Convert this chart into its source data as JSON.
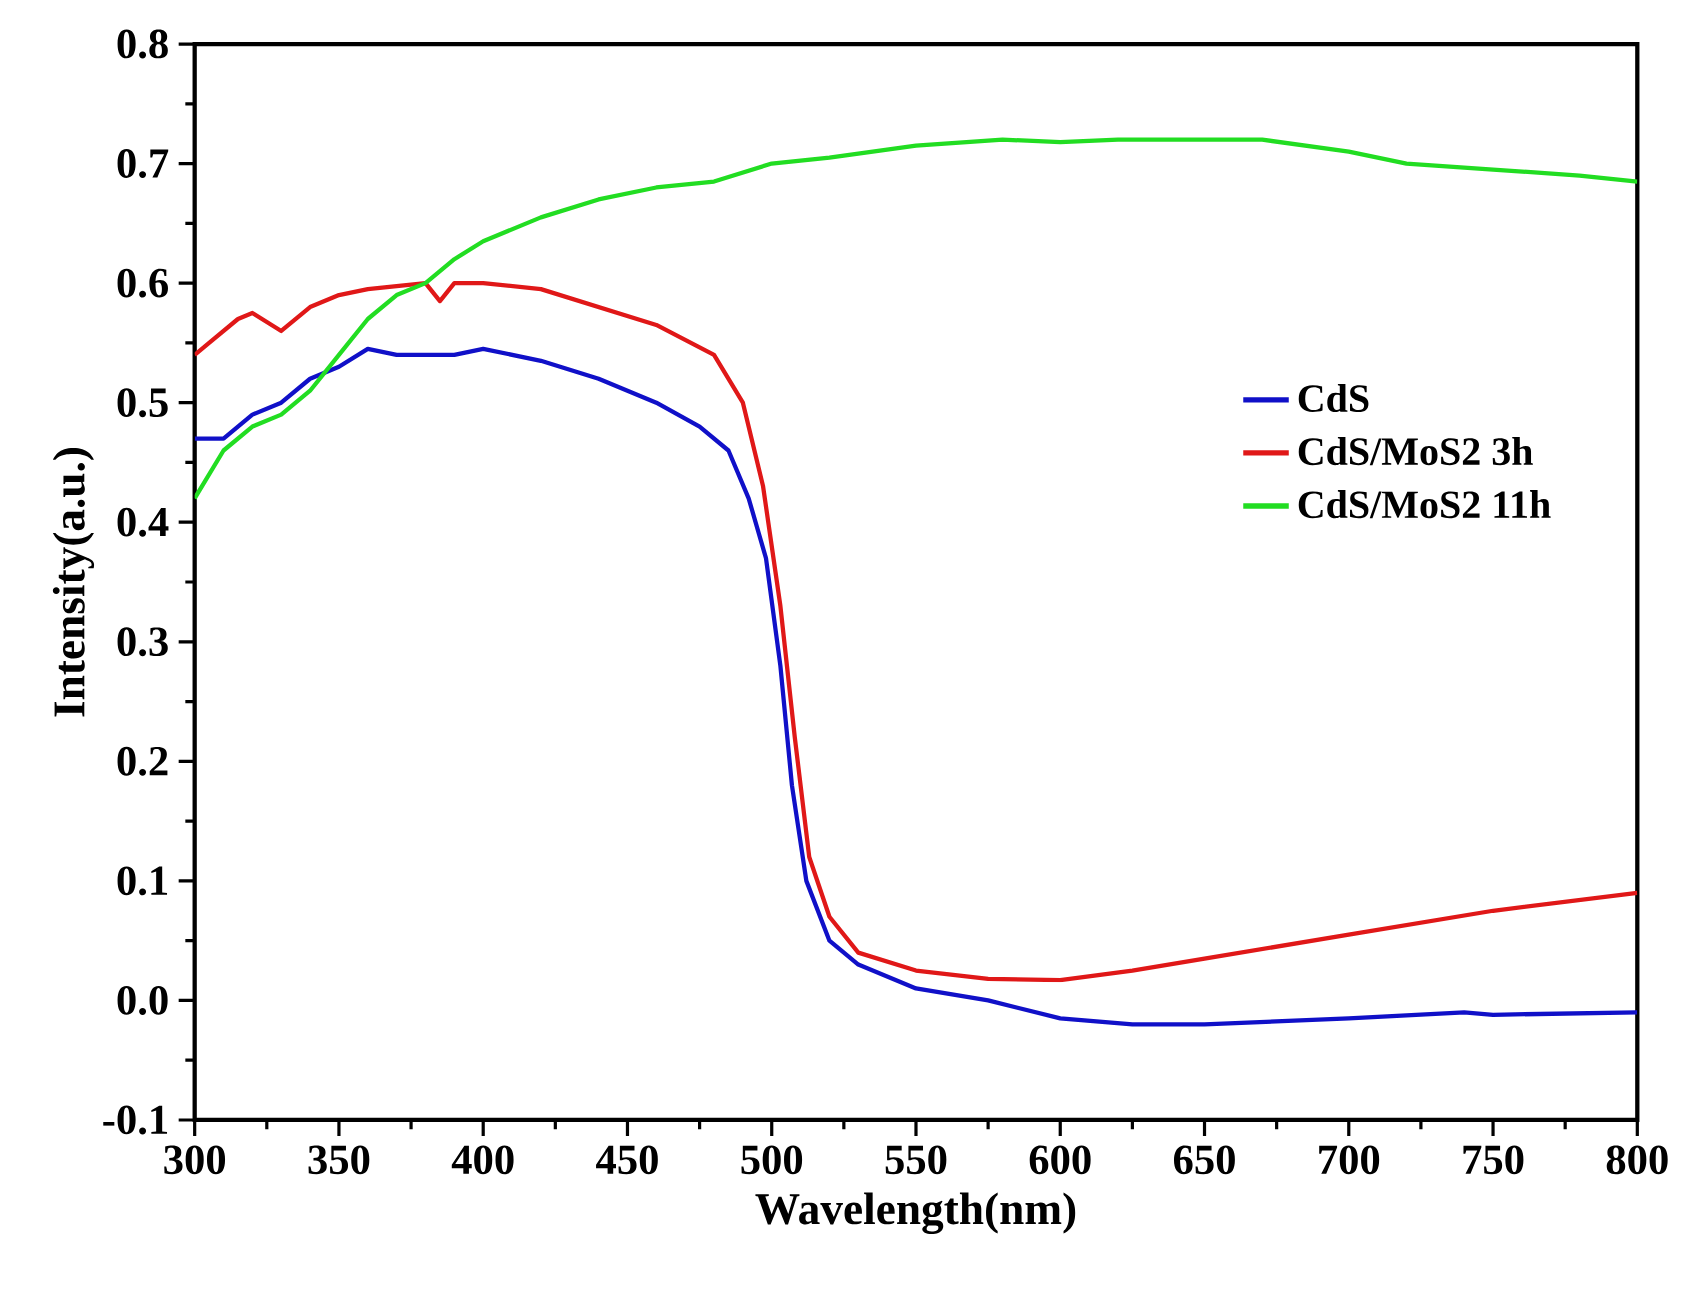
{
  "chart_data": {
    "type": "line",
    "xlabel": "Wavelength(nm)",
    "ylabel": "Intensity(a.u.)",
    "xlim": [
      300,
      800
    ],
    "xticks": [
      300,
      350,
      400,
      450,
      500,
      550,
      600,
      650,
      700,
      750,
      800
    ],
    "ylim": [
      -0.1,
      0.8
    ],
    "yticks": [
      {
        "value": -0.1,
        "label": "-0.1"
      },
      {
        "value": 0.0,
        "label": "0.0"
      },
      0.1,
      0.2,
      0.3,
      0.4,
      0.5,
      0.6,
      0.7,
      0.8
    ],
    "legend": "right",
    "grid": false,
    "marker": "none",
    "line_style": "solid",
    "series": [
      {
        "name": "CdS",
        "color": "#1010c8",
        "x": [
          300,
          310,
          320,
          330,
          340,
          350,
          360,
          370,
          380,
          390,
          400,
          420,
          440,
          460,
          475,
          485,
          492,
          498,
          503,
          507,
          512,
          520,
          530,
          550,
          575,
          600,
          625,
          650,
          700,
          740,
          750,
          800
        ],
        "values": [
          0.47,
          0.47,
          0.49,
          0.5,
          0.52,
          0.53,
          0.545,
          0.54,
          0.54,
          0.54,
          0.545,
          0.535,
          0.52,
          0.5,
          0.48,
          0.46,
          0.42,
          0.37,
          0.28,
          0.18,
          0.1,
          0.05,
          0.03,
          0.01,
          0.0,
          -0.015,
          -0.02,
          -0.02,
          -0.015,
          -0.01,
          -0.012,
          -0.01
        ]
      },
      {
        "name": "CdS/MoS2 3h",
        "color": "#e01818",
        "x": [
          300,
          305,
          315,
          320,
          330,
          340,
          350,
          360,
          380,
          385,
          390,
          400,
          420,
          440,
          460,
          480,
          490,
          497,
          503,
          508,
          513,
          520,
          530,
          550,
          575,
          600,
          625,
          650,
          700,
          750,
          800
        ],
        "values": [
          0.54,
          0.55,
          0.57,
          0.575,
          0.56,
          0.58,
          0.59,
          0.595,
          0.6,
          0.585,
          0.6,
          0.6,
          0.595,
          0.58,
          0.565,
          0.54,
          0.5,
          0.43,
          0.33,
          0.22,
          0.12,
          0.07,
          0.04,
          0.025,
          0.018,
          0.017,
          0.025,
          0.035,
          0.055,
          0.075,
          0.09
        ]
      },
      {
        "name": "CdS/MoS2 11h",
        "color": "#22dd22",
        "x": [
          300,
          310,
          320,
          330,
          340,
          350,
          360,
          370,
          380,
          390,
          400,
          420,
          440,
          460,
          480,
          500,
          520,
          550,
          580,
          600,
          620,
          650,
          670,
          700,
          720,
          750,
          780,
          800
        ],
        "values": [
          0.42,
          0.46,
          0.48,
          0.49,
          0.51,
          0.54,
          0.57,
          0.59,
          0.6,
          0.62,
          0.635,
          0.655,
          0.67,
          0.68,
          0.685,
          0.7,
          0.705,
          0.715,
          0.72,
          0.718,
          0.72,
          0.72,
          0.72,
          0.71,
          0.7,
          0.695,
          0.69,
          0.685
        ]
      }
    ]
  }
}
